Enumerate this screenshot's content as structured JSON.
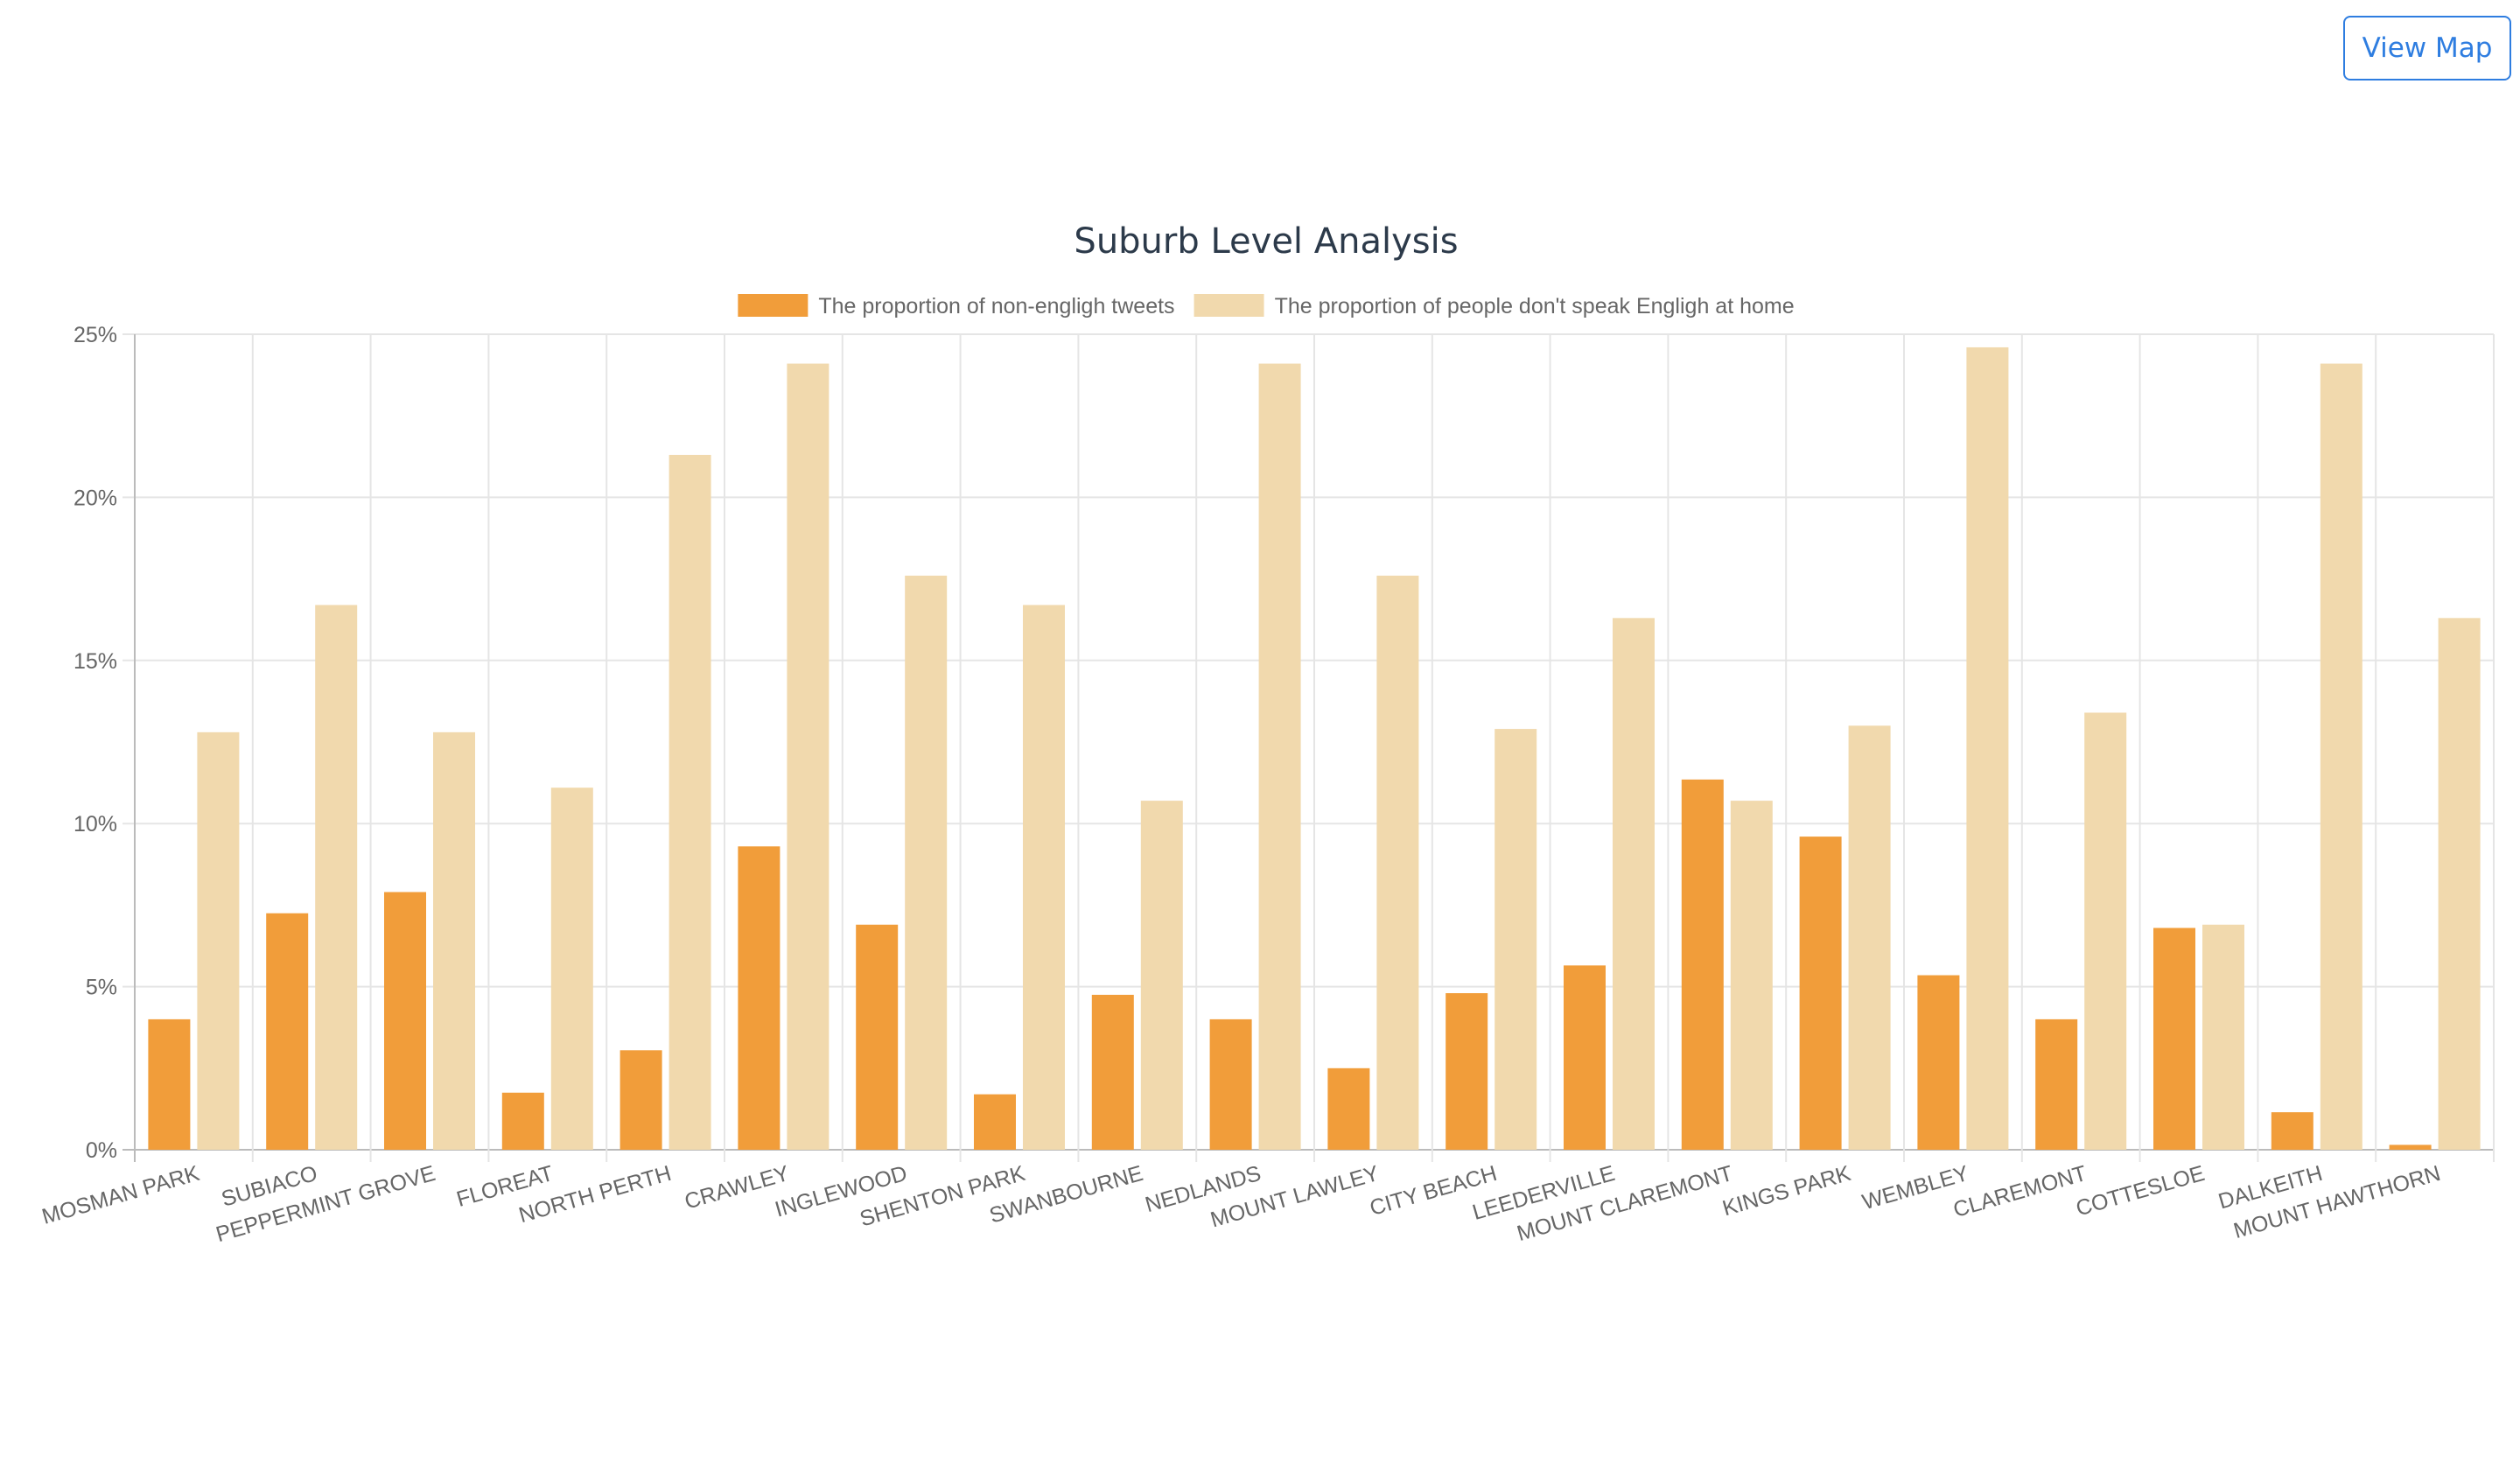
{
  "header": {
    "view_map_label": "View Map"
  },
  "colors": {
    "tweets": "#f19d3a",
    "home": "#f1d9ad",
    "grid": "#e5e5e5",
    "axis_text": "#666666",
    "title": "#2c3a4a",
    "button": "#2e7de0"
  },
  "chart_data": {
    "type": "bar",
    "title": "Suburb Level Analysis",
    "xlabel": "",
    "ylabel": "",
    "ylim": [
      0,
      25
    ],
    "yticks": [
      0,
      5,
      10,
      15,
      20,
      25
    ],
    "ytick_labels": [
      "0%",
      "5%",
      "10%",
      "15%",
      "20%",
      "25%"
    ],
    "legend_position": "top",
    "grid": true,
    "categories": [
      "MOSMAN PARK",
      "SUBIACO",
      "PEPPERMINT GROVE",
      "FLOREAT",
      "NORTH PERTH",
      "CRAWLEY",
      "INGLEWOOD",
      "SHENTON PARK",
      "SWANBOURNE",
      "NEDLANDS",
      "MOUNT LAWLEY",
      "CITY BEACH",
      "LEEDERVILLE",
      "MOUNT CLAREMONT",
      "KINGS PARK",
      "WEMBLEY",
      "CLAREMONT",
      "COTTESLOE",
      "DALKEITH",
      "MOUNT HAWTHORN"
    ],
    "series": [
      {
        "name": "The proportion of non-engligh tweets",
        "color": "#f19d3a",
        "values": [
          4.0,
          7.25,
          7.9,
          1.75,
          3.05,
          9.3,
          6.9,
          1.7,
          4.75,
          4.0,
          2.5,
          4.8,
          5.65,
          11.35,
          9.6,
          5.35,
          4.0,
          6.8,
          1.15,
          0.15
        ]
      },
      {
        "name": "The proportion of people don't speak Engligh at home",
        "color": "#f1d9ad",
        "values": [
          12.8,
          16.7,
          12.8,
          11.1,
          21.3,
          24.1,
          17.6,
          16.7,
          10.7,
          24.1,
          17.6,
          12.9,
          16.3,
          10.7,
          13.0,
          24.6,
          13.4,
          6.9,
          24.1,
          16.3
        ]
      }
    ]
  }
}
